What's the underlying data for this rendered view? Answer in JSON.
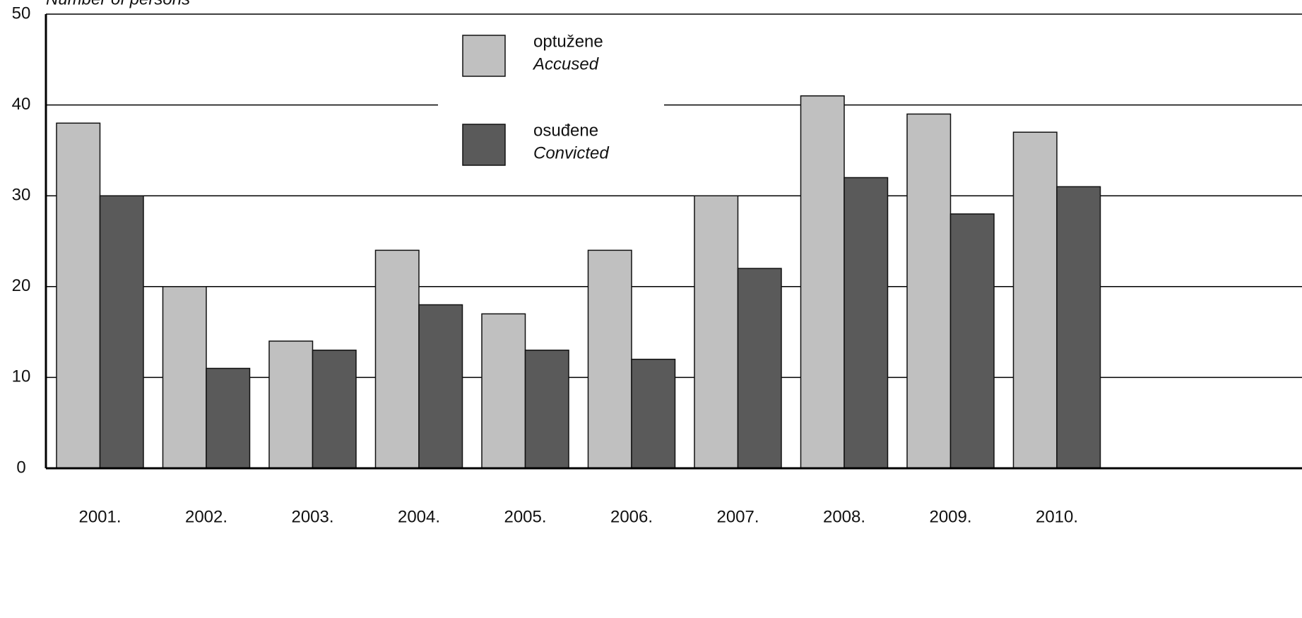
{
  "chart_data": {
    "type": "bar",
    "y_axis_label": "Number of persons",
    "categories": [
      "2001.",
      "2002.",
      "2003.",
      "2004.",
      "2005.",
      "2006.",
      "2007.",
      "2008.",
      "2009.",
      "2010."
    ],
    "series": [
      {
        "name": "optužene",
        "subname": "Accused",
        "color": "#c0c0c0",
        "values": [
          38,
          20,
          14,
          24,
          17,
          24,
          30,
          41,
          39,
          37
        ]
      },
      {
        "name": "osuđene",
        "subname": "Convicted",
        "color": "#5a5a5a",
        "values": [
          30,
          11,
          13,
          18,
          13,
          12,
          22,
          32,
          28,
          31
        ]
      }
    ],
    "ylim": [
      0,
      50
    ],
    "yticks": [
      0,
      10,
      20,
      30,
      40,
      50
    ],
    "grid": true
  }
}
